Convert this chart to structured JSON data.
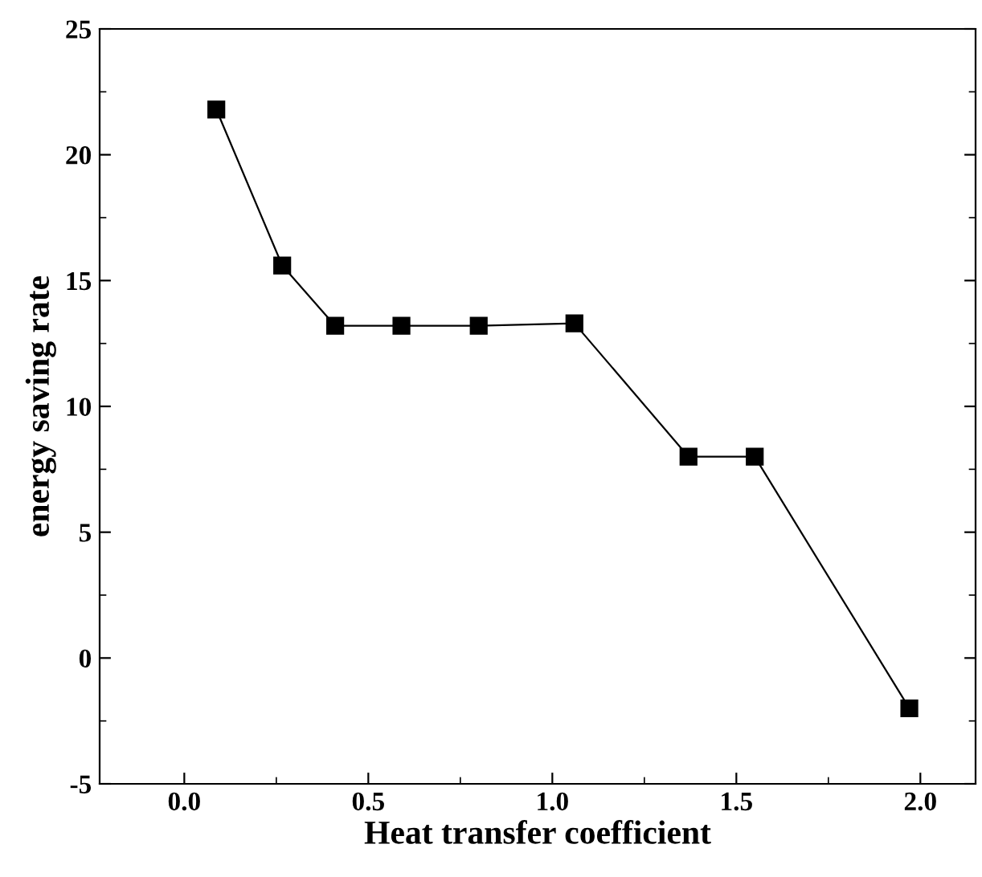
{
  "chart_data": {
    "type": "line",
    "xlabel": "Heat transfer coefficient",
    "ylabel": "energy saving rate",
    "x": [
      0.087,
      0.266,
      0.41,
      0.59,
      0.8,
      1.06,
      1.37,
      1.55,
      1.97
    ],
    "series": [
      {
        "color": "#000000",
        "values": [
          21.8,
          15.6,
          13.2,
          13.2,
          13.2,
          13.3,
          8.0,
          8.0,
          -2.0
        ]
      }
    ],
    "marker": "square",
    "line_style": "solid",
    "grid": false,
    "legend": false,
    "xlim": [
      -0.23,
      2.15
    ],
    "ylim": [
      -5,
      25
    ],
    "xticks": [
      {
        "value": 0,
        "label": "0.0"
      },
      0.5,
      {
        "value": 1,
        "label": "1.0"
      },
      1.5,
      {
        "value": 2,
        "label": "2.0"
      }
    ],
    "yticks": [
      -5,
      0,
      5,
      10,
      15,
      20,
      25
    ]
  }
}
